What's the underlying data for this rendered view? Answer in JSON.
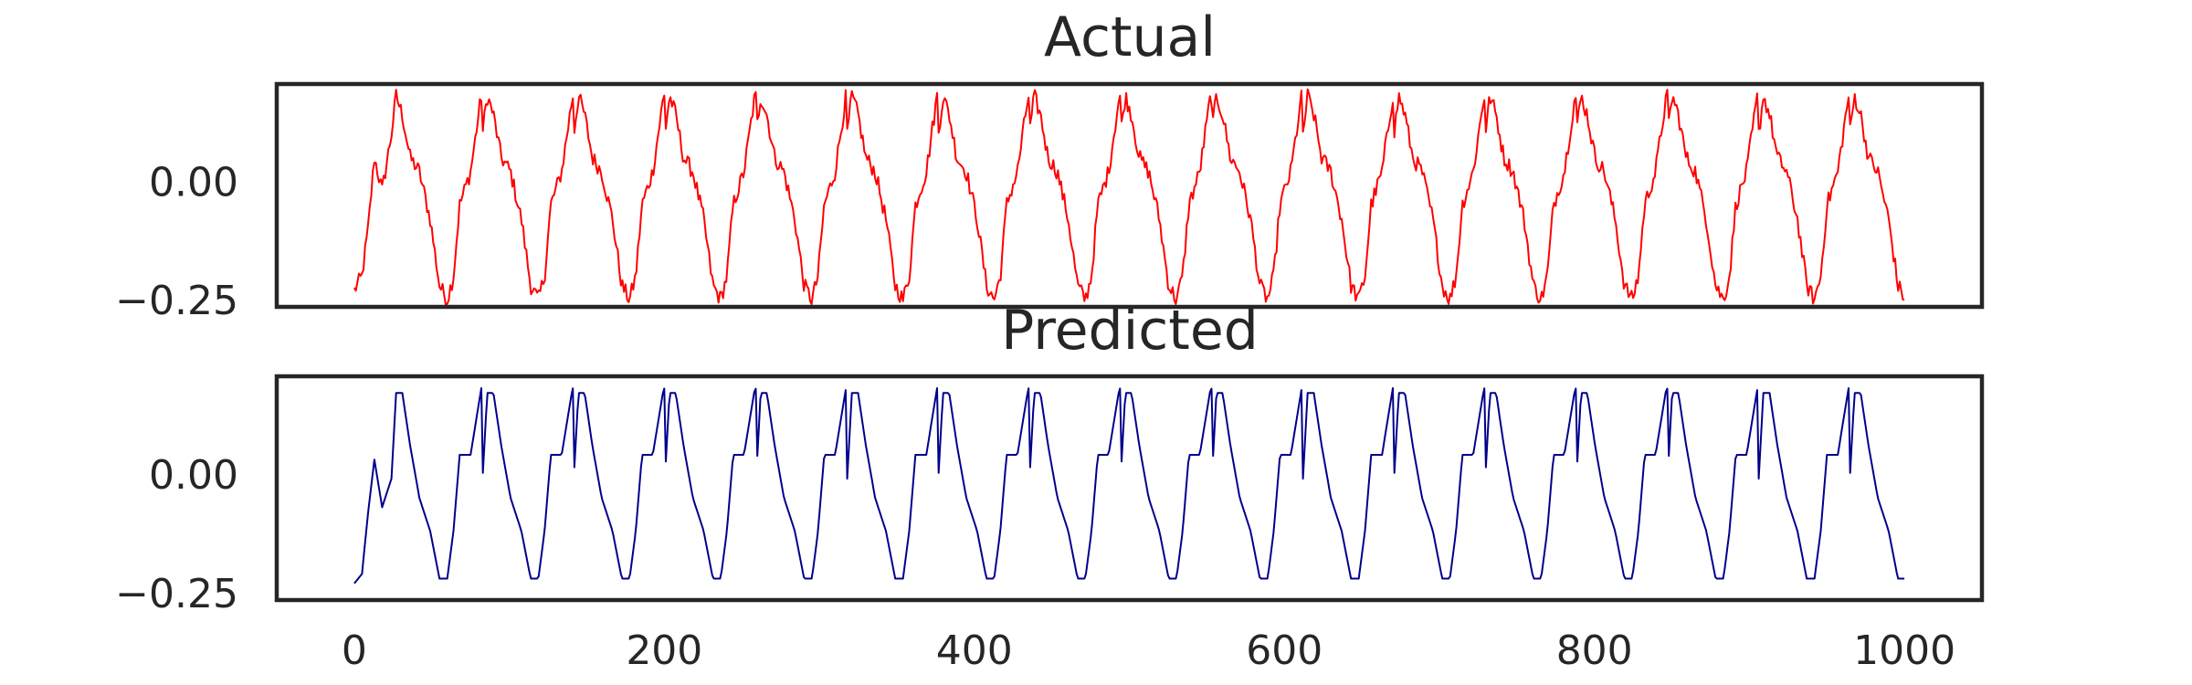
{
  "chart_data": [
    {
      "type": "line",
      "title": "Actual",
      "xlabel": "",
      "ylabel": "",
      "xlim": [
        -50,
        1050
      ],
      "ylim": [
        -0.265,
        0.205
      ],
      "yticks": [
        -0.25,
        0.0
      ],
      "ytick_labels": [
        "−0.25",
        "0.00"
      ],
      "show_xticks": false,
      "grid": false,
      "color": "#ff0000",
      "period": 58.8,
      "noise": true,
      "series": [
        {
          "x": [
            0,
            5,
            9,
            13,
            18,
            24,
            27,
            31,
            36,
            42,
            49,
            55,
            60,
            64,
            68,
            75,
            82,
            88,
            94,
            100,
            106,
            112
          ],
          "values": [
            -0.23,
            -0.2,
            -0.1,
            0.05,
            -0.02,
            0.1,
            0.18,
            0.14,
            0.05,
            0.02,
            -0.08,
            -0.22,
            -0.25,
            -0.2,
            -0.05,
            0.02,
            0.18,
            0.15,
            0.06,
            0.0,
            -0.1,
            -0.22
          ]
        }
      ]
    },
    {
      "type": "line",
      "title": "Predicted",
      "xlabel": "",
      "ylabel": "",
      "xlim": [
        -50,
        1050
      ],
      "ylim": [
        -0.265,
        0.205
      ],
      "yticks": [
        -0.25,
        0.0
      ],
      "ytick_labels": [
        "−0.25",
        "0.00"
      ],
      "xticks": [
        0,
        200,
        400,
        600,
        800,
        1000
      ],
      "xtick_labels": [
        "0",
        "200",
        "400",
        "600",
        "800",
        "1000"
      ],
      "grid": false,
      "color": "#00008b",
      "period": 58.8,
      "noise": false,
      "series": [
        {
          "x": [
            0,
            5,
            9,
            13,
            18,
            24,
            27,
            31,
            36,
            42,
            49,
            55,
            60,
            64,
            68,
            75,
            82,
            88,
            94,
            100,
            106,
            112
          ],
          "values": [
            -0.23,
            -0.21,
            -0.08,
            0.03,
            -0.07,
            -0.01,
            0.17,
            0.17,
            0.06,
            -0.05,
            -0.12,
            -0.22,
            -0.22,
            -0.12,
            0.04,
            0.04,
            0.18,
            0.17,
            0.05,
            0.0,
            -0.1,
            -0.22
          ]
        }
      ]
    }
  ]
}
